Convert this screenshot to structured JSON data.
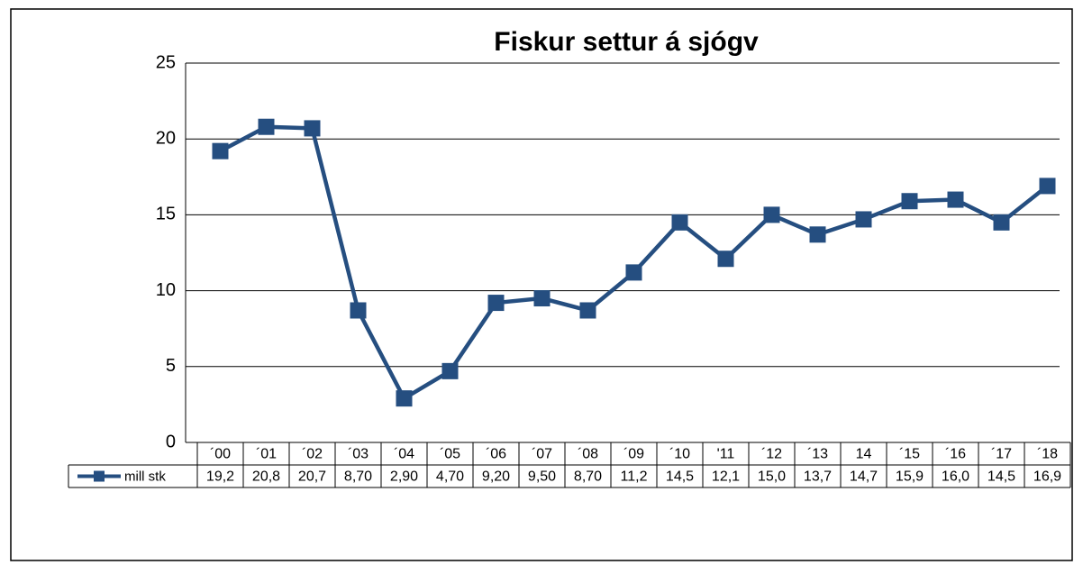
{
  "chart_data": {
    "type": "line",
    "title": "Fiskur settur á sjógv",
    "categories": [
      "´00",
      "´01",
      "´02",
      "´03",
      "´04",
      "´05",
      "´06",
      "´07",
      "´08",
      "´09",
      "´10",
      "'11",
      "´12",
      "´13",
      "14",
      "´15",
      "´16",
      "´17",
      "´18"
    ],
    "series": [
      {
        "name": "mill stk",
        "color": "#254e80",
        "values": [
          19.2,
          20.8,
          20.7,
          8.7,
          2.9,
          4.7,
          9.2,
          9.5,
          8.7,
          11.2,
          14.5,
          12.1,
          15.0,
          13.7,
          14.7,
          15.9,
          16.0,
          14.5,
          16.9
        ],
        "value_labels": [
          "19,2",
          "20,8",
          "20,7",
          "8,70",
          "2,90",
          "4,70",
          "9,20",
          "9,50",
          "8,70",
          "11,2",
          "14,5",
          "12,1",
          "15,0",
          "13,7",
          "14,7",
          "15,9",
          "16,0",
          "14,5",
          "16,9"
        ]
      }
    ],
    "ylim": [
      0,
      25
    ],
    "yticks": [
      0,
      5,
      10,
      15,
      20,
      25
    ],
    "grid": true
  }
}
